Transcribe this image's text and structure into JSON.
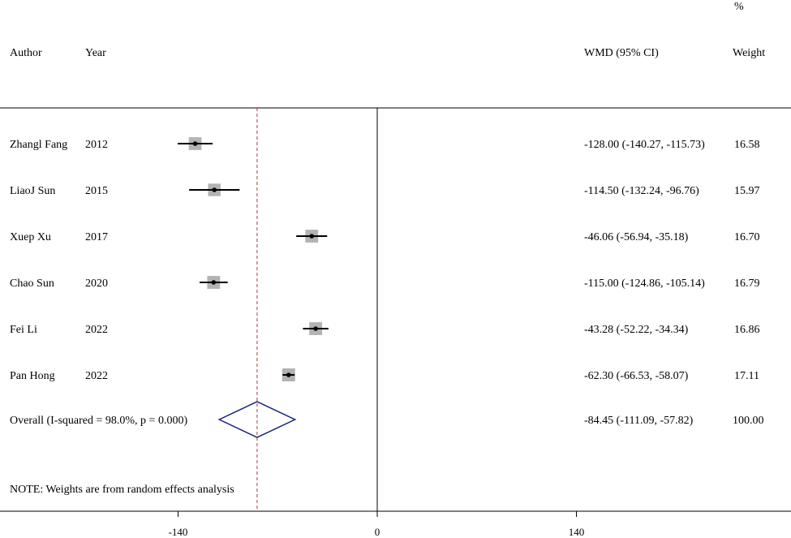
{
  "chart_data": {
    "type": "forest",
    "headers": {
      "author": "Author",
      "year": "Year",
      "effect": "WMD (95% CI)",
      "weight_top": "%",
      "weight": "Weight"
    },
    "studies": [
      {
        "author": "Zhangl Fang",
        "year": "2012",
        "wmd": -128.0,
        "lo": -140.27,
        "hi": -115.73,
        "ci_text": "-128.00 (-140.27, -115.73)",
        "weight": 16.58,
        "weight_text": "16.58"
      },
      {
        "author": "LiaoJ Sun",
        "year": "2015",
        "wmd": -114.5,
        "lo": -132.24,
        "hi": -96.76,
        "ci_text": "-114.50 (-132.24, -96.76)",
        "weight": 15.97,
        "weight_text": "15.97"
      },
      {
        "author": "Xuep Xu",
        "year": "2017",
        "wmd": -46.06,
        "lo": -56.94,
        "hi": -35.18,
        "ci_text": "-46.06 (-56.94, -35.18)",
        "weight": 16.7,
        "weight_text": "16.70"
      },
      {
        "author": "Chao Sun",
        "year": "2020",
        "wmd": -115.0,
        "lo": -124.86,
        "hi": -105.14,
        "ci_text": "-115.00 (-124.86, -105.14)",
        "weight": 16.79,
        "weight_text": "16.79"
      },
      {
        "author": "Fei Li",
        "year": "2022",
        "wmd": -43.28,
        "lo": -52.22,
        "hi": -34.34,
        "ci_text": "-43.28 (-52.22, -34.34)",
        "weight": 16.86,
        "weight_text": "16.86"
      },
      {
        "author": "Pan Hong",
        "year": "2022",
        "wmd": -62.3,
        "lo": -66.53,
        "hi": -58.07,
        "ci_text": "-62.30 (-66.53, -58.07)",
        "weight": 17.11,
        "weight_text": "17.11"
      }
    ],
    "overall": {
      "label": "Overall  (I-squared = 98.0%, p = 0.000)",
      "wmd": -84.45,
      "lo": -111.09,
      "hi": -57.82,
      "ci_text": "-84.45 (-111.09, -57.82)",
      "weight_text": "100.00"
    },
    "note": "NOTE: Weights are from random effects analysis",
    "x_ticks": [
      {
        "value": -140,
        "label": "-140"
      },
      {
        "value": 0,
        "label": "0"
      },
      {
        "value": 140,
        "label": "140"
      }
    ],
    "null_line": 0,
    "colors": {
      "box": "#b3b3b3",
      "diamond": "#1a237e",
      "overall_line": "#a04040",
      "axis": "#000000"
    }
  }
}
